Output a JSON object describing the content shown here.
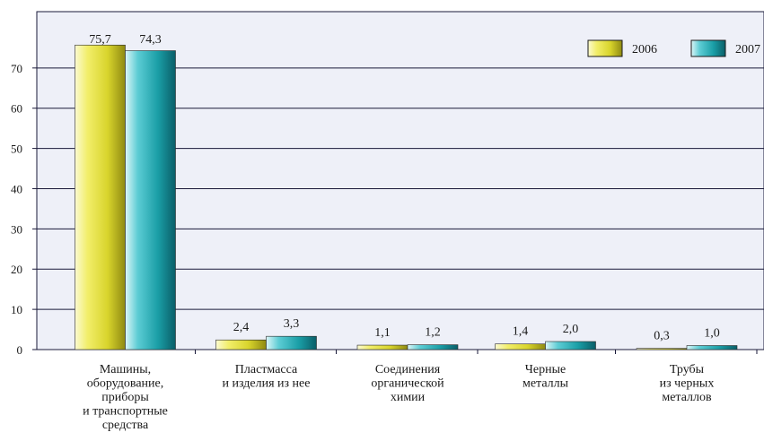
{
  "chart_data": {
    "type": "bar",
    "categories": [
      [
        "Машины,",
        "оборудование,",
        "приборы",
        "и транспортные",
        "средства"
      ],
      [
        "Пластмасса",
        "и изделия из нее"
      ],
      [
        "Соединения",
        "органической",
        "химии"
      ],
      [
        "Черные",
        "металлы"
      ],
      [
        "Трубы",
        "из черных",
        "металлов"
      ]
    ],
    "series": [
      {
        "name": "2006",
        "values": [
          75.7,
          2.4,
          1.1,
          1.4,
          0.3
        ],
        "labels": [
          "75,7",
          "2,4",
          "1,1",
          "1,4",
          "0,3"
        ],
        "color": "#d8d42c"
      },
      {
        "name": "2007",
        "values": [
          74.3,
          3.3,
          1.2,
          2.0,
          1.0
        ],
        "labels": [
          "74,3",
          "3,3",
          "1,2",
          "2,0",
          "1,0"
        ],
        "color": "#1a9ea6"
      }
    ],
    "title": "",
    "xlabel": "",
    "ylabel": "",
    "ylim": [
      0,
      84
    ],
    "yticks": [
      0,
      10,
      20,
      30,
      40,
      50,
      60,
      70
    ],
    "grid": true,
    "legend_position": "top-right",
    "colors": {
      "plot_background": "#eef0f8",
      "gridline": "#1a1a3a"
    }
  }
}
